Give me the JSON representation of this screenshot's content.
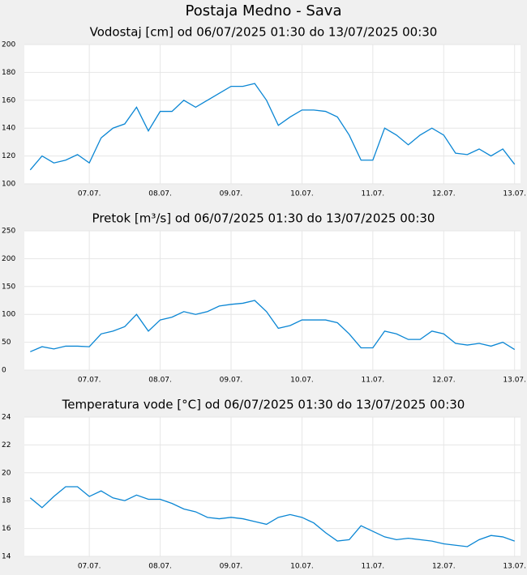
{
  "title": "Postaja Medno - Sava",
  "chart_data": [
    {
      "type": "line",
      "title": "Vodostaj [cm] od 06/07/2025 01:30 do 13/07/2025 00:30",
      "color": "#0a86d4",
      "grid": true,
      "x": [
        null,
        null,
        null,
        null,
        null,
        "07.07.",
        null,
        null,
        null,
        null,
        null,
        "08.07.",
        null,
        null,
        null,
        null,
        null,
        "09.07.",
        null,
        null,
        null,
        null,
        null,
        "10.07.",
        null,
        null,
        null,
        null,
        null,
        "11.07.",
        null,
        null,
        null,
        null,
        null,
        "12.07.",
        null,
        null,
        null,
        null,
        null,
        "13.07."
      ],
      "values": [
        110,
        120,
        115,
        117,
        121,
        115,
        133,
        140,
        143,
        155,
        138,
        152,
        152,
        160,
        155,
        160,
        165,
        170,
        170,
        172,
        160,
        142,
        148,
        153,
        153,
        152,
        148,
        135,
        117,
        117,
        140,
        135,
        128,
        135,
        140,
        135,
        122,
        121,
        125,
        120,
        125,
        114
      ],
      "ylim": [
        100,
        200
      ],
      "yticks": [
        100,
        120,
        140,
        160,
        180,
        200
      ]
    },
    {
      "type": "line",
      "title": "Pretok [m³/s] od 06/07/2025 01:30 do 13/07/2025 00:30",
      "color": "#0a86d4",
      "grid": true,
      "x": [
        null,
        null,
        null,
        null,
        null,
        "07.07.",
        null,
        null,
        null,
        null,
        null,
        "08.07.",
        null,
        null,
        null,
        null,
        null,
        "09.07.",
        null,
        null,
        null,
        null,
        null,
        "10.07.",
        null,
        null,
        null,
        null,
        null,
        "11.07.",
        null,
        null,
        null,
        null,
        null,
        "12.07.",
        null,
        null,
        null,
        null,
        null,
        "13.07."
      ],
      "values": [
        33,
        42,
        38,
        43,
        43,
        42,
        65,
        70,
        78,
        100,
        70,
        90,
        95,
        105,
        100,
        105,
        115,
        118,
        120,
        125,
        105,
        75,
        80,
        90,
        90,
        90,
        85,
        65,
        40,
        40,
        70,
        65,
        55,
        55,
        70,
        65,
        48,
        45,
        48,
        43,
        50,
        37
      ],
      "ylim": [
        0,
        250
      ],
      "yticks": [
        0,
        50,
        100,
        150,
        200,
        250
      ]
    },
    {
      "type": "line",
      "title": "Temperatura vode [°C] od 06/07/2025 01:30 do 13/07/2025 00:30",
      "color": "#0a86d4",
      "grid": true,
      "x": [
        null,
        null,
        null,
        null,
        null,
        "07.07.",
        null,
        null,
        null,
        null,
        null,
        "08.07.",
        null,
        null,
        null,
        null,
        null,
        "09.07.",
        null,
        null,
        null,
        null,
        null,
        "10.07.",
        null,
        null,
        null,
        null,
        null,
        "11.07.",
        null,
        null,
        null,
        null,
        null,
        "12.07.",
        null,
        null,
        null,
        null,
        null,
        "13.07."
      ],
      "values": [
        18.2,
        17.5,
        18.3,
        19.0,
        19.0,
        18.3,
        18.7,
        18.2,
        18.0,
        18.4,
        18.1,
        18.1,
        17.8,
        17.4,
        17.2,
        16.8,
        16.7,
        16.8,
        16.7,
        16.5,
        16.3,
        16.8,
        17.0,
        16.8,
        16.4,
        15.7,
        15.1,
        15.2,
        16.2,
        15.8,
        15.4,
        15.2,
        15.3,
        15.2,
        15.1,
        14.9,
        14.8,
        14.7,
        15.2,
        15.5,
        15.4,
        15.1
      ],
      "ylim": [
        14,
        24
      ],
      "yticks": [
        14,
        16,
        18,
        20,
        22,
        24
      ]
    }
  ]
}
